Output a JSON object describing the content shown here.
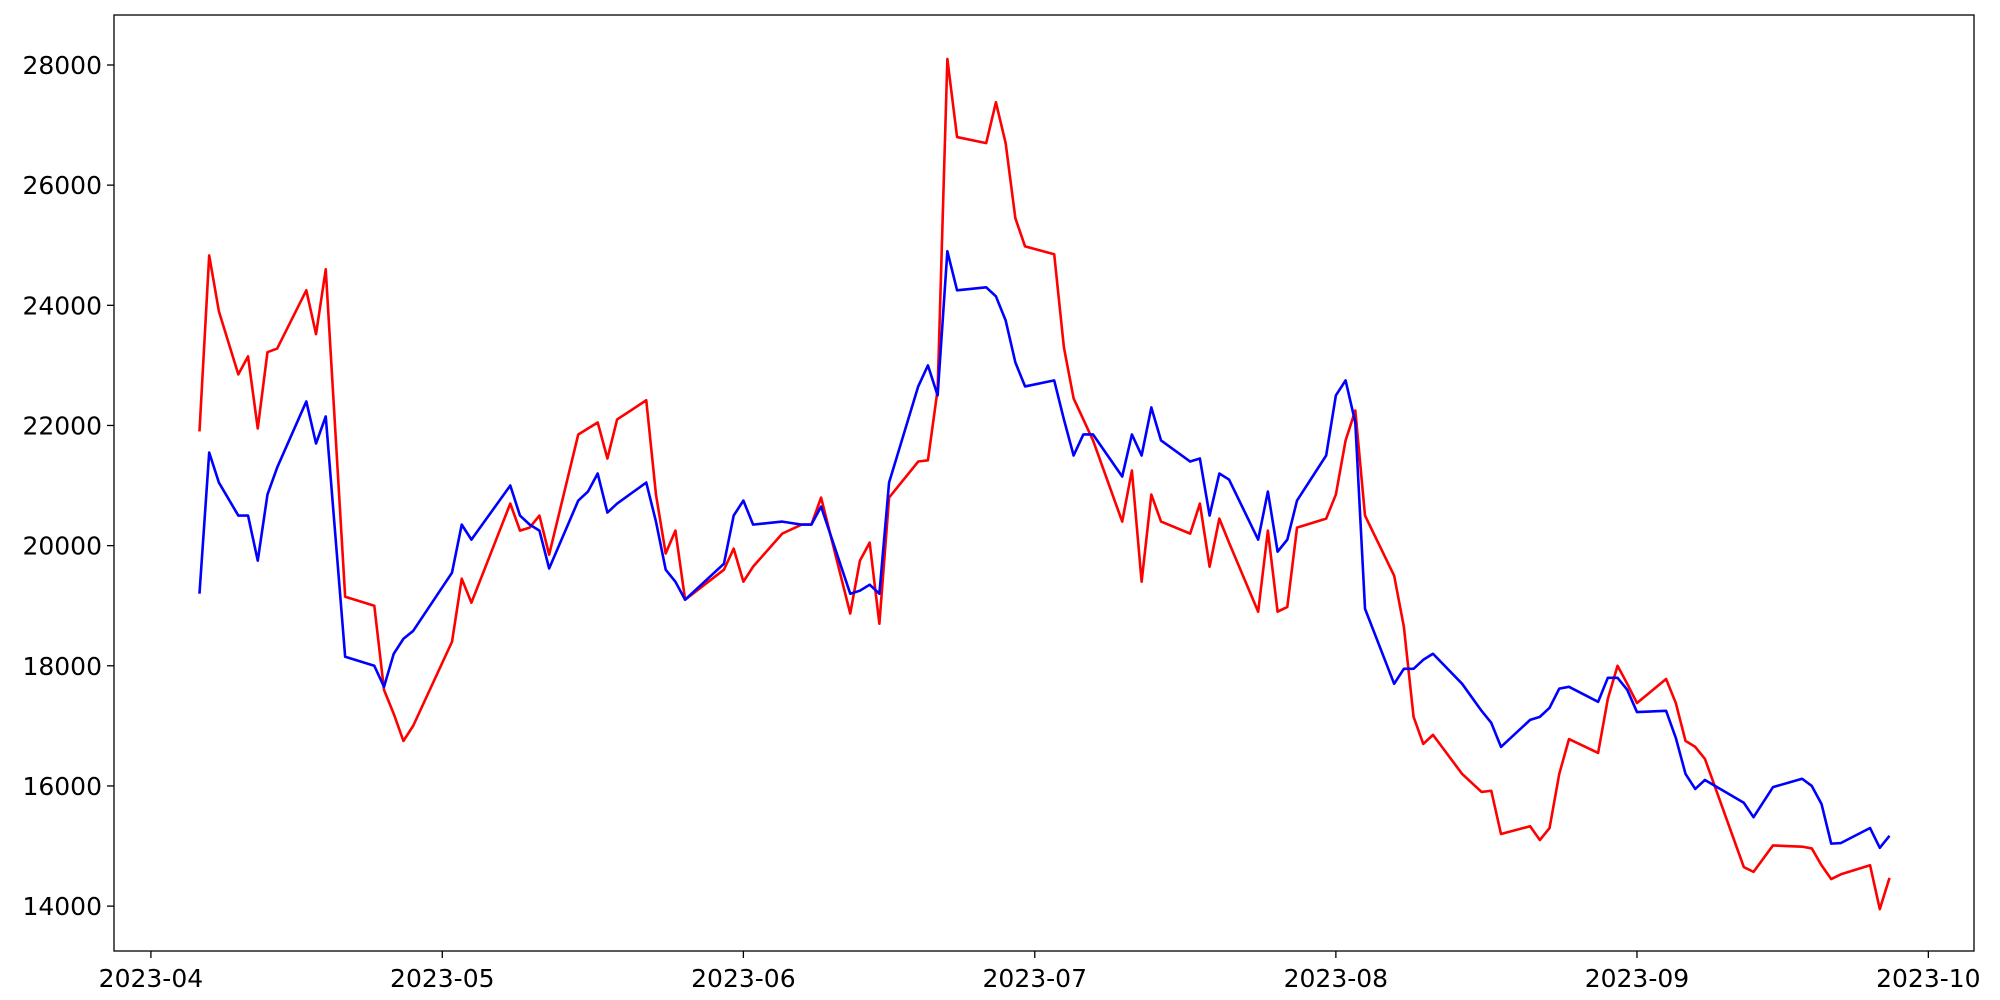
{
  "chart_data": {
    "type": "line",
    "x": [
      19453,
      19454,
      19455,
      19457,
      19458,
      19459,
      19460,
      19461,
      19464,
      19465,
      19466,
      19468,
      19471,
      19472,
      19473,
      19474,
      19475,
      19479,
      19480,
      19481,
      19485,
      19486,
      19487,
      19488,
      19489,
      19492,
      19493,
      19494,
      19495,
      19496,
      19499,
      19500,
      19501,
      19502,
      19503,
      19507,
      19508,
      19509,
      19510,
      19513,
      19515,
      19516,
      19517,
      19520,
      19521,
      19522,
      19523,
      19524,
      19527,
      19528,
      19529,
      19530,
      19531,
      19534,
      19535,
      19536,
      19537,
      19538,
      19541,
      19542,
      19543,
      19544,
      19545,
      19548,
      19549,
      19550,
      19551,
      19552,
      19555,
      19556,
      19557,
      19558,
      19559,
      19562,
      19563,
      19564,
      19565,
      19566,
      19569,
      19570,
      19571,
      19572,
      19573,
      19576,
      19577,
      19578,
      19579,
      19580,
      19583,
      19585,
      19586,
      19587,
      19590,
      19591,
      19592,
      19593,
      19594,
      19597,
      19598,
      19599,
      19600,
      19601,
      19604,
      19605,
      19606,
      19607,
      19608,
      19612,
      19613,
      19615,
      19618,
      19619,
      19620,
      19621,
      19622,
      19625,
      19626,
      19627
    ],
    "series": [
      {
        "color": "#ff0000",
        "values": [
          21900,
          24830,
          23900,
          22850,
          23150,
          21950,
          23220,
          23280,
          24250,
          23520,
          24600,
          19150,
          19000,
          17600,
          17200,
          16750,
          17000,
          18400,
          19450,
          19050,
          20700,
          20250,
          20300,
          20500,
          19850,
          21850,
          21950,
          22050,
          21450,
          22100,
          22420,
          20850,
          19870,
          20250,
          19100,
          19600,
          19950,
          19400,
          19650,
          20200,
          20350,
          20350,
          20800,
          18870,
          19750,
          20050,
          18700,
          20800,
          21400,
          21420,
          22600,
          28100,
          26800,
          26700,
          27380,
          26700,
          25450,
          24980,
          24850,
          23300,
          22450,
          22100,
          21750,
          20400,
          21250,
          19400,
          20850,
          20400,
          20200,
          20700,
          19650,
          20450,
          20050,
          18900,
          20250,
          18900,
          18980,
          20300,
          20450,
          20850,
          21750,
          22250,
          20500,
          19500,
          18650,
          17150,
          16700,
          16850,
          16200,
          15900,
          15920,
          15200,
          15330,
          15100,
          15300,
          16200,
          16780,
          16550,
          17450,
          18000,
          17700,
          17380,
          17780,
          17380,
          16750,
          16650,
          16450,
          14650,
          14570,
          15010,
          14990,
          14960,
          14680,
          14450,
          14530,
          14680,
          13950,
          14470
        ]
      },
      {
        "color": "#0000ff",
        "values": [
          19200,
          21550,
          21050,
          20500,
          20500,
          19750,
          20850,
          21300,
          22400,
          21700,
          22150,
          18150,
          18000,
          17650,
          18200,
          18450,
          18580,
          19550,
          20350,
          20100,
          21000,
          20500,
          20350,
          20250,
          19620,
          20750,
          20900,
          21200,
          20550,
          20700,
          21050,
          20400,
          19600,
          19400,
          19100,
          19700,
          20500,
          20750,
          20350,
          20400,
          20350,
          20350,
          20650,
          19200,
          19250,
          19350,
          19200,
          21050,
          22650,
          23000,
          22500,
          24900,
          24250,
          24300,
          24150,
          23750,
          23050,
          22650,
          22750,
          22100,
          21500,
          21850,
          21850,
          21150,
          21850,
          21500,
          22300,
          21750,
          21400,
          21450,
          20500,
          21200,
          21100,
          20100,
          20900,
          19900,
          20100,
          20750,
          21500,
          22500,
          22750,
          22050,
          18950,
          17700,
          17950,
          17950,
          18100,
          18200,
          17700,
          17250,
          17050,
          16650,
          17100,
          17150,
          17300,
          17620,
          17650,
          17400,
          17800,
          17800,
          17600,
          17230,
          17250,
          16800,
          16200,
          15950,
          16100,
          15720,
          15480,
          15980,
          16120,
          16000,
          15700,
          15040,
          15050,
          15300,
          14970,
          15170
        ]
      }
    ],
    "xlim": [
      19444.2,
      19635.7
    ],
    "xticks": [
      {
        "value": 19448,
        "label": "2023-04"
      },
      {
        "value": 19478,
        "label": "2023-05"
      },
      {
        "value": 19509,
        "label": "2023-06"
      },
      {
        "value": 19539,
        "label": "2023-07"
      },
      {
        "value": 19570,
        "label": "2023-08"
      },
      {
        "value": 19601,
        "label": "2023-09"
      },
      {
        "value": 19631,
        "label": "2023-10"
      }
    ],
    "ylim": [
      13253,
      28832
    ],
    "yticks": [
      14000,
      16000,
      18000,
      20000,
      22000,
      24000,
      26000,
      28000
    ]
  }
}
